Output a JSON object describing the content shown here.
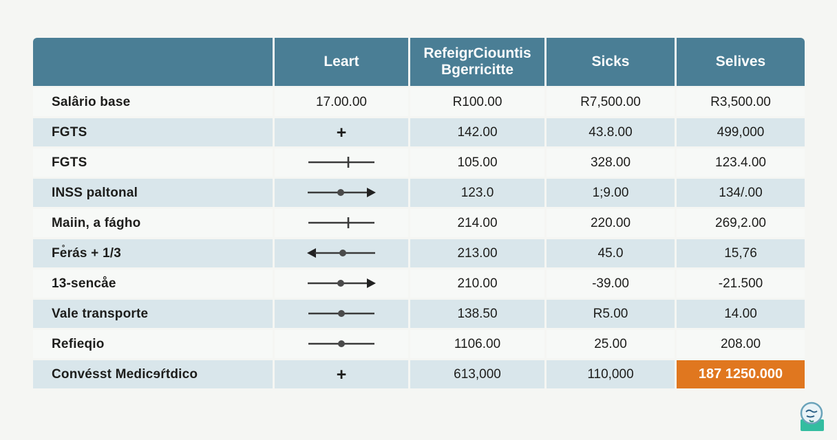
{
  "colors": {
    "page_background": "#f5f6f3",
    "header_background": "#4a7e95",
    "row_light": "#f7f9f7",
    "row_blue": "#d9e6eb",
    "highlight_orange": "#e0771f",
    "body_text": "#1d1d1b",
    "header_text": "#fbfcfc",
    "icon_stroke": "#3a3a3a"
  },
  "chart_data": {
    "type": "table",
    "header": {
      "c1": "",
      "c2": "Leart",
      "c3_line1": "RefeigrCiountis",
      "c3_line2": "Bgerricitte",
      "c4": "Sicks",
      "c5": "Selives"
    },
    "rows": [
      {
        "label": "Salârio base",
        "leart_type": "text",
        "leart_value": "17.00.00",
        "c3": "R100.00",
        "c4": "R7,500.00",
        "c5": "R3,500.00",
        "c5_highlight": false
      },
      {
        "label": "FGTS",
        "leart_type": "plus-icon",
        "leart_value": "+",
        "c3": "142.00",
        "c4": "43.8.00",
        "c5": "499,000",
        "c5_highlight": false
      },
      {
        "label": "FGTS",
        "leart_type": "line-tick-icon",
        "leart_value": "",
        "c3": "105.00",
        "c4": "328.00",
        "c5": "123.4.00",
        "c5_highlight": false
      },
      {
        "label": "INSS paltonal",
        "leart_type": "arrow-right-dot-icon",
        "leart_value": "",
        "c3": "123.0",
        "c4": "1;9.00",
        "c5": "134/.00",
        "c5_highlight": false
      },
      {
        "label": "Maiin, a fágho",
        "leart_type": "line-tick-icon",
        "leart_value": "",
        "c3": "214.00",
        "c4": "220.00",
        "c5": "269,2.00",
        "c5_highlight": false
      },
      {
        "label": "Fe̊rás + 1/3",
        "leart_type": "arrow-left-dot-icon",
        "leart_value": "",
        "c3": "213.00",
        "c4": "45.0",
        "c5": "15,76",
        "c5_highlight": false
      },
      {
        "label": "13-sencåe",
        "leart_type": "arrow-right-dot-icon",
        "leart_value": "",
        "c3": "210.00",
        "c4": "-39.00",
        "c5": "-21.500",
        "c5_highlight": false
      },
      {
        "label": "Vale transporte",
        "leart_type": "line-dot-icon",
        "leart_value": "",
        "c3": "138.50",
        "c4": "R5.00",
        "c5": "14.00",
        "c5_highlight": false
      },
      {
        "label": "Refieqio",
        "leart_type": "line-dot-icon",
        "leart_value": "",
        "c3": "1106.00",
        "c4": "25.00",
        "c5": "208.00",
        "c5_highlight": false
      },
      {
        "label": "Convésst Medicɘŕtdico",
        "leart_type": "plus-icon",
        "leart_value": "+",
        "c3": "613,000",
        "c4": "110,000",
        "c5": "187 1250.000",
        "c5_highlight": true
      }
    ]
  }
}
